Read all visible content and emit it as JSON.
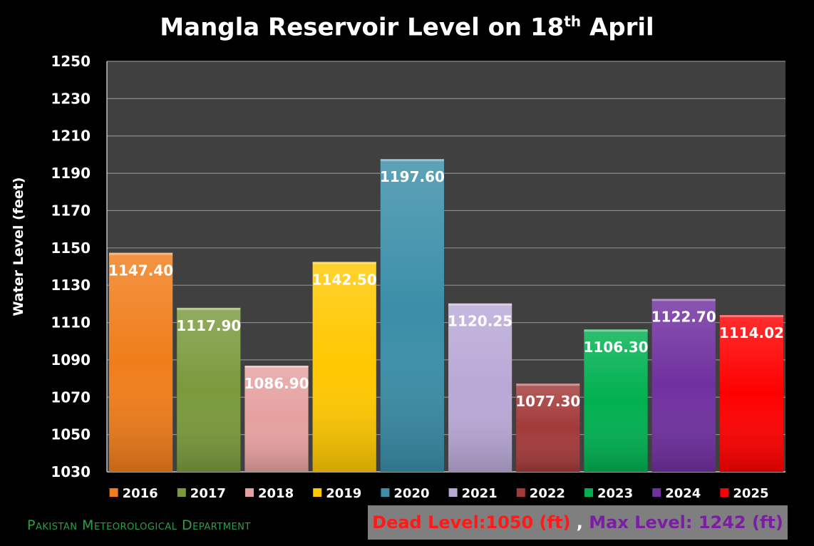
{
  "chart_data": {
    "type": "bar",
    "title": "Mangla Reservoir Level on 18",
    "title_sup": "th",
    "title_suffix": " April",
    "ylabel": "Water Level  (feet)",
    "ylim": [
      1030,
      1250
    ],
    "yticks": [
      1030,
      1050,
      1070,
      1090,
      1110,
      1130,
      1150,
      1170,
      1190,
      1210,
      1230,
      1250
    ],
    "grid": true,
    "legend_position": "bottom",
    "categories": [
      "2016",
      "2017",
      "2018",
      "2019",
      "2020",
      "2021",
      "2022",
      "2023",
      "2024",
      "2025"
    ],
    "values": [
      1147.4,
      1117.9,
      1086.9,
      1142.5,
      1197.6,
      1120.25,
      1077.3,
      1106.3,
      1122.7,
      1114.02
    ],
    "data_labels": [
      "1147.40",
      "1117.90",
      "1086.90",
      "1142.50",
      "1197.60",
      "1120.25",
      "1077.30",
      "1106.30",
      "1122.70",
      "1114.02"
    ],
    "colors": [
      "#f07d1a",
      "#7a9a3c",
      "#e6a0a0",
      "#ffc800",
      "#3a8ea8",
      "#b9a8d6",
      "#a33a3a",
      "#00b050",
      "#7030a0",
      "#ff0000"
    ],
    "label_colors": [
      "#ffffff",
      "#ffffff",
      "#ffffff",
      "#ffffff",
      "#ffffff",
      "#ffffff",
      "#ffffff",
      "#ffffff",
      "#ffffff",
      "#ffffff"
    ]
  },
  "footer": {
    "organization": "Pakistan Meteorological Department",
    "dead_level": "Dead Level:1050 (ft)",
    "separator": " , ",
    "max_level": "Max Level: 1242 (ft)"
  },
  "colors": {
    "background": "#000000",
    "plot_area": "#404040",
    "gridline": "#8c8c8c"
  }
}
